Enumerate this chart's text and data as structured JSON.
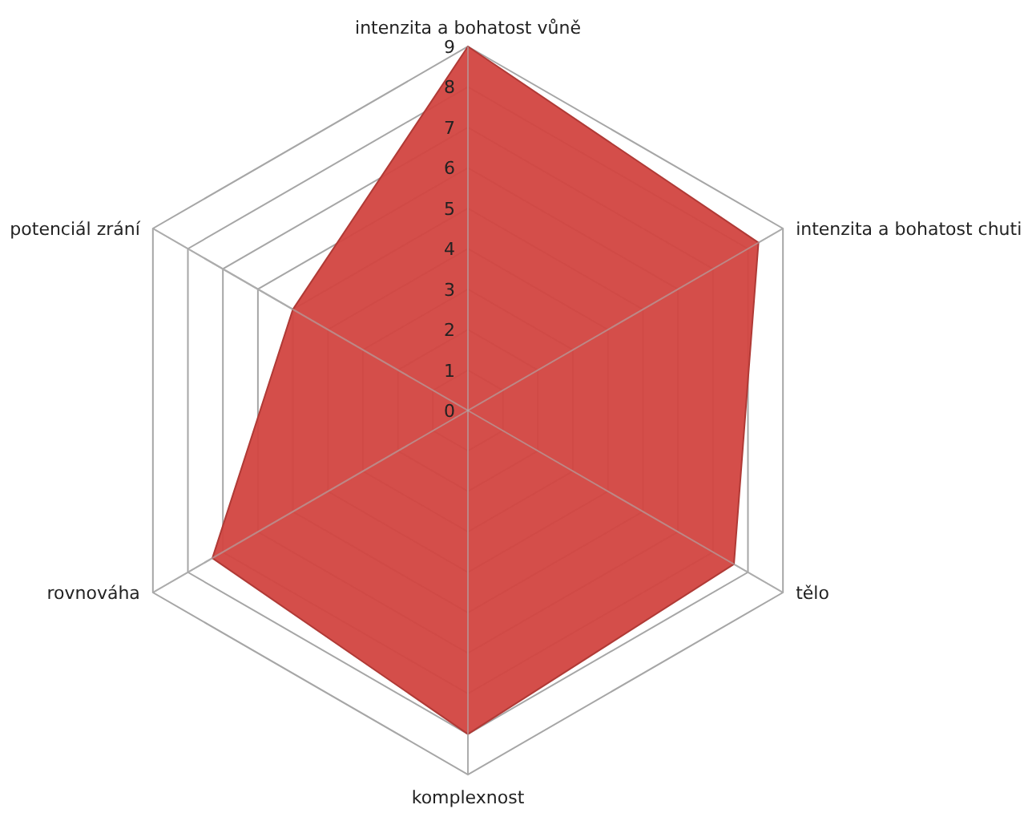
{
  "chart_data": {
    "type": "radar",
    "categories": [
      "intenzita a bohatost vůně",
      "intenzita a bohatost chuti",
      "tělo",
      "komplexnost",
      "rovnováha",
      "potenciál zrání"
    ],
    "series": [
      {
        "color": "#d24540",
        "values": [
          9,
          8.3,
          7.6,
          8,
          7.3,
          5
        ]
      }
    ],
    "ylim": [
      0,
      9
    ],
    "yticks": [
      0,
      1,
      2,
      3,
      4,
      5,
      6,
      7,
      8,
      9
    ],
    "grid": true
  }
}
